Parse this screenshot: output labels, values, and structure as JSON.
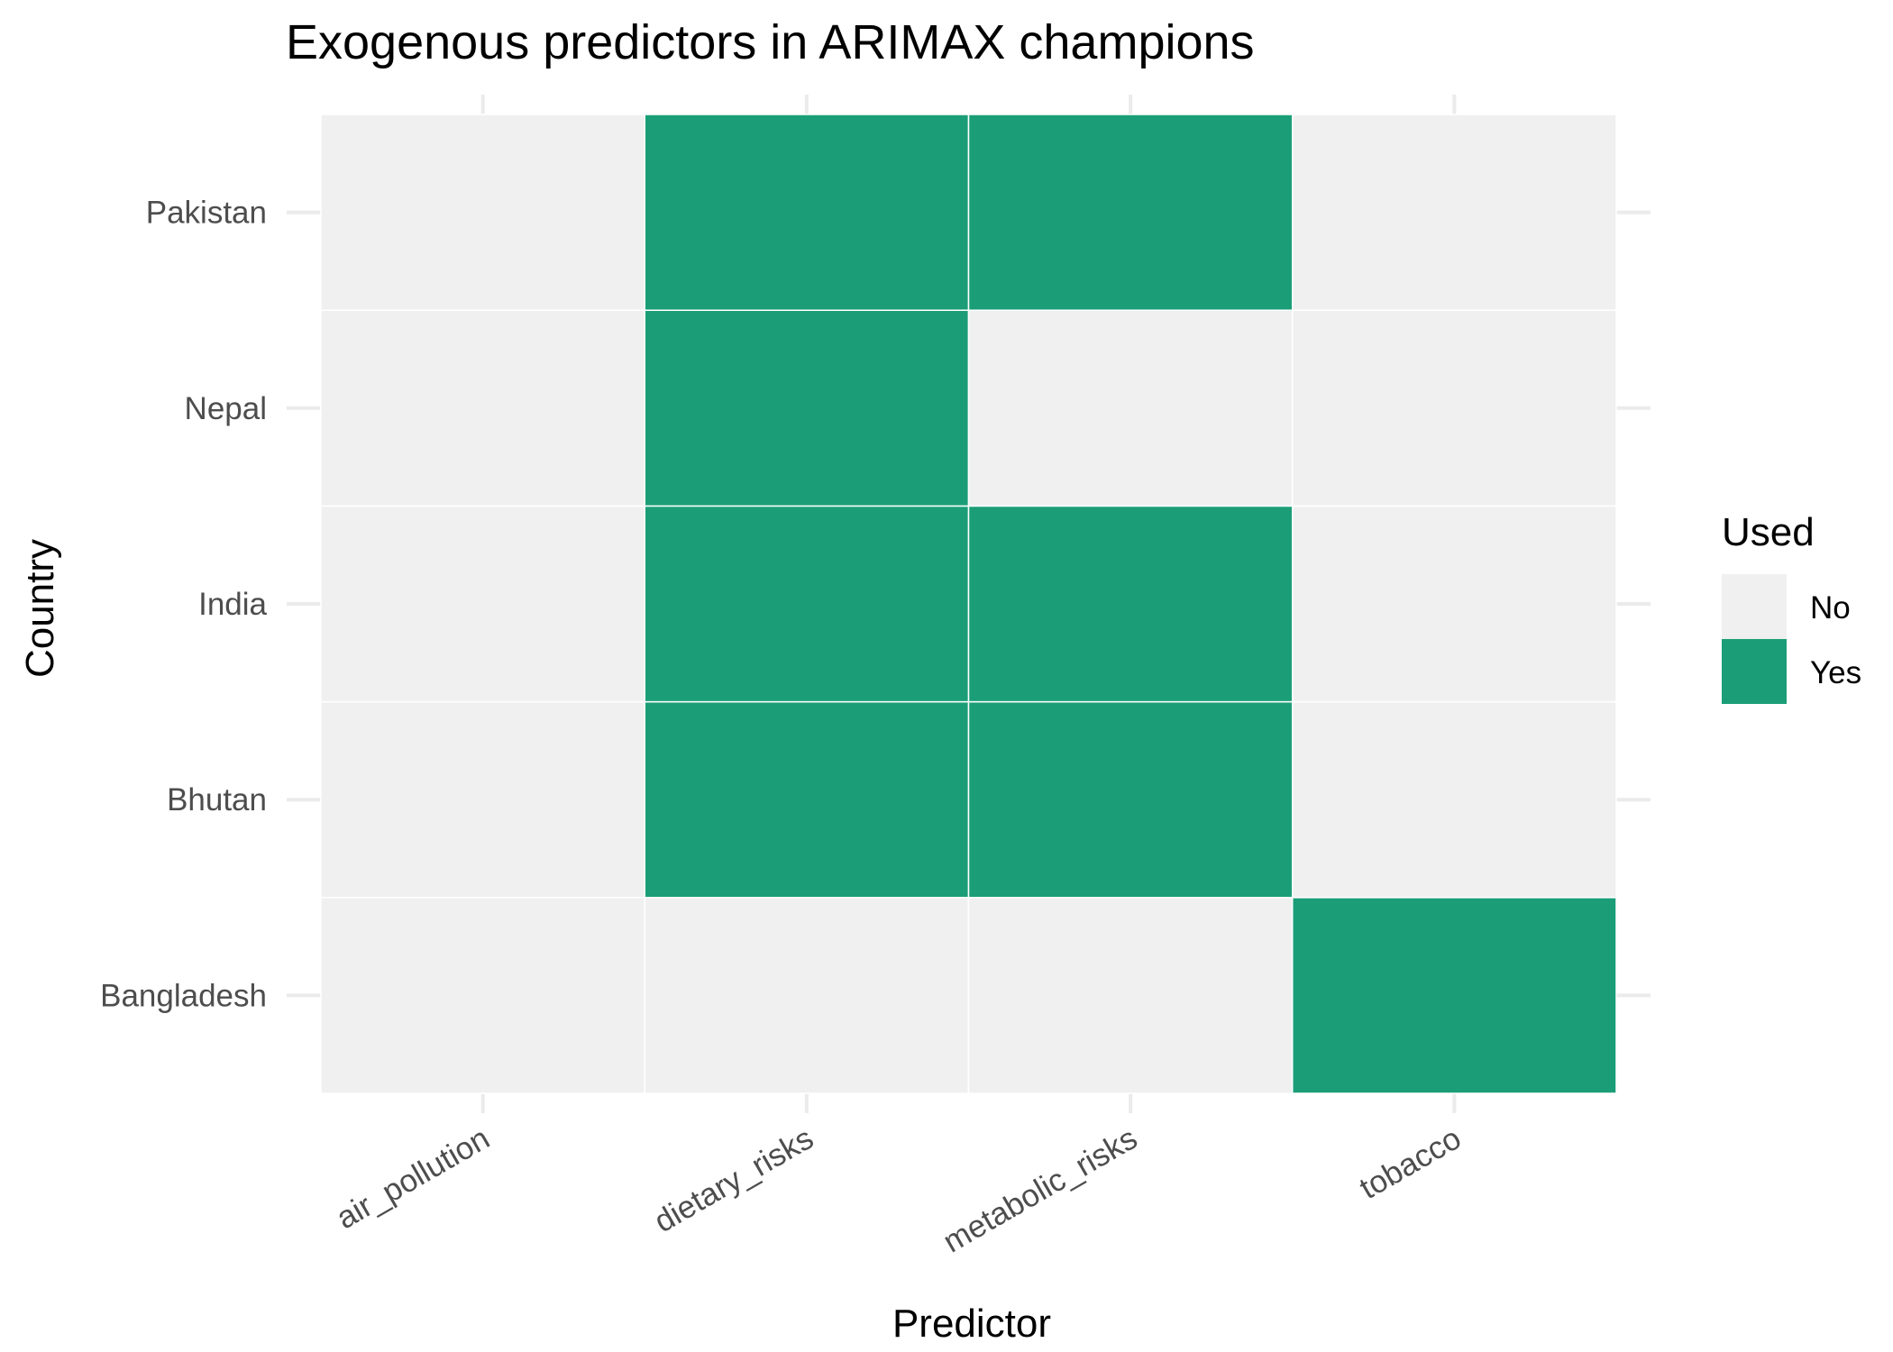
{
  "chart_data": {
    "type": "heatmap",
    "title": "Exogenous predictors in ARIMAX champions",
    "xlabel": "Predictor",
    "ylabel": "Country",
    "x_categories": [
      "air_pollution",
      "dietary_risks",
      "metabolic_risks",
      "tobacco"
    ],
    "y_categories": [
      "Bangladesh",
      "Bhutan",
      "India",
      "Nepal",
      "Pakistan"
    ],
    "values": [
      {
        "country": "Pakistan",
        "air_pollution": "No",
        "dietary_risks": "Yes",
        "metabolic_risks": "Yes",
        "tobacco": "No"
      },
      {
        "country": "Nepal",
        "air_pollution": "No",
        "dietary_risks": "Yes",
        "metabolic_risks": "No",
        "tobacco": "No"
      },
      {
        "country": "India",
        "air_pollution": "No",
        "dietary_risks": "Yes",
        "metabolic_risks": "Yes",
        "tobacco": "No"
      },
      {
        "country": "Bhutan",
        "air_pollution": "No",
        "dietary_risks": "Yes",
        "metabolic_risks": "Yes",
        "tobacco": "No"
      },
      {
        "country": "Bangladesh",
        "air_pollution": "No",
        "dietary_risks": "No",
        "metabolic_risks": "No",
        "tobacco": "Yes"
      }
    ],
    "legend": {
      "title": "Used",
      "position": "right",
      "items": [
        {
          "label": "No",
          "color": "#f0f0f0"
        },
        {
          "label": "Yes",
          "color": "#1b9e77"
        }
      ]
    },
    "grid": true
  }
}
